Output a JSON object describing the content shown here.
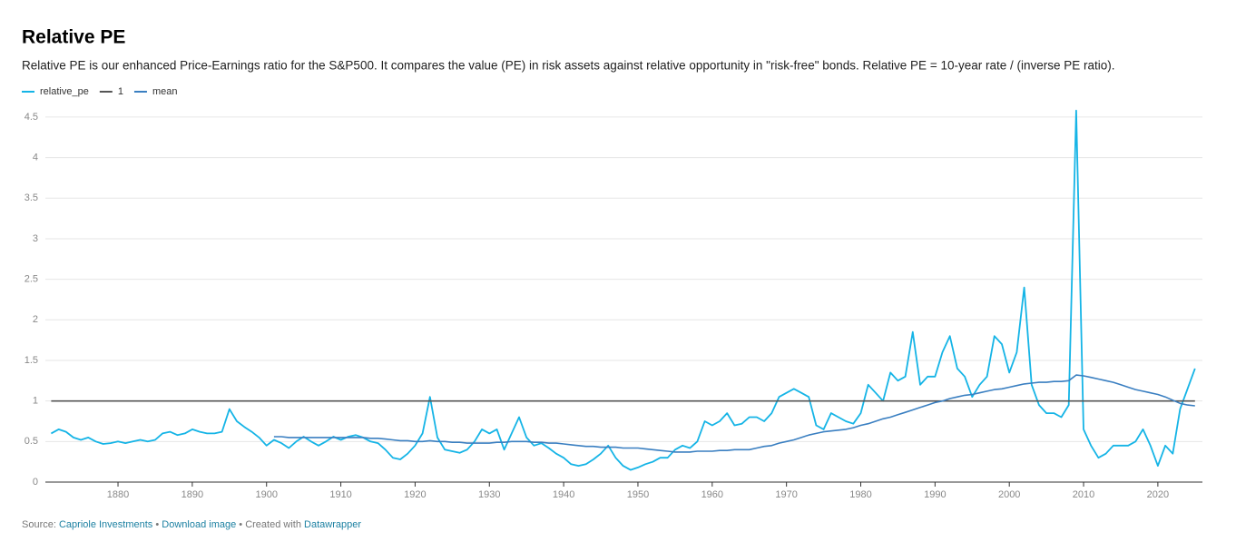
{
  "chart_data": {
    "type": "line",
    "title": "Relative PE",
    "subtitle": "Relative PE is our enhanced Price-Earnings ratio for the S&P500. It compares the value (PE) in risk assets against relative opportunity in \"risk-free\" bonds. Relative PE = 10-year rate / (inverse PE ratio).",
    "footer": {
      "source_label": "Source:",
      "source": "Capriole Investments",
      "download": "Download image",
      "created": "Created with",
      "tool": "Datawrapper"
    },
    "x": [
      1871,
      1872,
      1873,
      1874,
      1875,
      1876,
      1877,
      1878,
      1879,
      1880,
      1881,
      1882,
      1883,
      1884,
      1885,
      1886,
      1887,
      1888,
      1889,
      1890,
      1891,
      1892,
      1893,
      1894,
      1895,
      1896,
      1897,
      1898,
      1899,
      1900,
      1901,
      1902,
      1903,
      1904,
      1905,
      1906,
      1907,
      1908,
      1909,
      1910,
      1911,
      1912,
      1913,
      1914,
      1915,
      1916,
      1917,
      1918,
      1919,
      1920,
      1921,
      1922,
      1923,
      1924,
      1925,
      1926,
      1927,
      1928,
      1929,
      1930,
      1931,
      1932,
      1933,
      1934,
      1935,
      1936,
      1937,
      1938,
      1939,
      1940,
      1941,
      1942,
      1943,
      1944,
      1945,
      1946,
      1947,
      1948,
      1949,
      1950,
      1951,
      1952,
      1953,
      1954,
      1955,
      1956,
      1957,
      1958,
      1959,
      1960,
      1961,
      1962,
      1963,
      1964,
      1965,
      1966,
      1967,
      1968,
      1969,
      1970,
      1971,
      1972,
      1973,
      1974,
      1975,
      1976,
      1977,
      1978,
      1979,
      1980,
      1981,
      1982,
      1983,
      1984,
      1985,
      1986,
      1987,
      1988,
      1989,
      1990,
      1991,
      1992,
      1993,
      1994,
      1995,
      1996,
      1997,
      1998,
      1999,
      2000,
      2001,
      2002,
      2003,
      2004,
      2005,
      2006,
      2007,
      2008,
      2009,
      2010,
      2011,
      2012,
      2013,
      2014,
      2015,
      2016,
      2017,
      2018,
      2019,
      2020,
      2021,
      2022,
      2023,
      2024,
      2025
    ],
    "series": [
      {
        "name": "relative_pe",
        "color": "#15b4e6",
        "values": [
          0.6,
          0.65,
          0.62,
          0.55,
          0.52,
          0.55,
          0.5,
          0.47,
          0.48,
          0.5,
          0.48,
          0.5,
          0.52,
          0.5,
          0.52,
          0.6,
          0.62,
          0.58,
          0.6,
          0.65,
          0.62,
          0.6,
          0.6,
          0.62,
          0.9,
          0.75,
          0.68,
          0.62,
          0.55,
          0.45,
          0.52,
          0.48,
          0.42,
          0.5,
          0.56,
          0.5,
          0.45,
          0.5,
          0.56,
          0.52,
          0.56,
          0.58,
          0.55,
          0.5,
          0.48,
          0.4,
          0.3,
          0.28,
          0.35,
          0.45,
          0.6,
          1.05,
          0.55,
          0.4,
          0.38,
          0.36,
          0.4,
          0.5,
          0.65,
          0.6,
          0.65,
          0.4,
          0.6,
          0.8,
          0.55,
          0.45,
          0.48,
          0.42,
          0.35,
          0.3,
          0.22,
          0.2,
          0.22,
          0.28,
          0.35,
          0.45,
          0.3,
          0.2,
          0.15,
          0.18,
          0.22,
          0.25,
          0.3,
          0.3,
          0.4,
          0.45,
          0.42,
          0.5,
          0.75,
          0.7,
          0.75,
          0.85,
          0.7,
          0.72,
          0.8,
          0.8,
          0.75,
          0.85,
          1.05,
          1.1,
          1.15,
          1.1,
          1.05,
          0.7,
          0.65,
          0.85,
          0.8,
          0.75,
          0.72,
          0.85,
          1.2,
          1.1,
          1.0,
          1.35,
          1.25,
          1.3,
          1.85,
          1.2,
          1.3,
          1.3,
          1.6,
          1.8,
          1.4,
          1.3,
          1.05,
          1.2,
          1.3,
          1.8,
          1.7,
          1.35,
          1.6,
          2.4,
          1.2,
          0.95,
          0.85,
          0.85,
          0.8,
          0.95,
          4.58,
          0.65,
          0.45,
          0.3,
          0.35,
          0.45,
          0.45,
          0.45,
          0.5,
          0.65,
          0.45,
          0.2,
          0.45,
          0.35,
          0.9,
          1.15,
          1.4
        ]
      },
      {
        "name": "1",
        "color": "#555555",
        "values": [
          1,
          1,
          1,
          1,
          1,
          1,
          1,
          1,
          1,
          1,
          1,
          1,
          1,
          1,
          1,
          1,
          1,
          1,
          1,
          1,
          1,
          1,
          1,
          1,
          1,
          1,
          1,
          1,
          1,
          1,
          1,
          1,
          1,
          1,
          1,
          1,
          1,
          1,
          1,
          1,
          1,
          1,
          1,
          1,
          1,
          1,
          1,
          1,
          1,
          1,
          1,
          1,
          1,
          1,
          1,
          1,
          1,
          1,
          1,
          1,
          1,
          1,
          1,
          1,
          1,
          1,
          1,
          1,
          1,
          1,
          1,
          1,
          1,
          1,
          1,
          1,
          1,
          1,
          1,
          1,
          1,
          1,
          1,
          1,
          1,
          1,
          1,
          1,
          1,
          1,
          1,
          1,
          1,
          1,
          1,
          1,
          1,
          1,
          1,
          1,
          1,
          1,
          1,
          1,
          1,
          1,
          1,
          1,
          1,
          1,
          1,
          1,
          1,
          1,
          1,
          1,
          1,
          1,
          1,
          1,
          1,
          1,
          1,
          1,
          1,
          1,
          1,
          1,
          1,
          1,
          1,
          1,
          1,
          1,
          1,
          1,
          1,
          1,
          1,
          1,
          1,
          1,
          1,
          1,
          1,
          1,
          1,
          1,
          1,
          1,
          1,
          1,
          1,
          1,
          1
        ]
      },
      {
        "name": "mean",
        "color": "#3a7fc1",
        "values": [
          null,
          null,
          null,
          null,
          null,
          null,
          null,
          null,
          null,
          null,
          null,
          null,
          null,
          null,
          null,
          null,
          null,
          null,
          null,
          null,
          null,
          null,
          null,
          null,
          null,
          null,
          null,
          null,
          null,
          null,
          0.56,
          0.56,
          0.55,
          0.55,
          0.55,
          0.55,
          0.55,
          0.55,
          0.55,
          0.55,
          0.55,
          0.55,
          0.55,
          0.54,
          0.54,
          0.53,
          0.52,
          0.51,
          0.51,
          0.5,
          0.5,
          0.51,
          0.5,
          0.5,
          0.49,
          0.49,
          0.48,
          0.48,
          0.48,
          0.48,
          0.49,
          0.49,
          0.5,
          0.5,
          0.5,
          0.49,
          0.49,
          0.48,
          0.48,
          0.47,
          0.46,
          0.45,
          0.44,
          0.44,
          0.43,
          0.43,
          0.43,
          0.42,
          0.42,
          0.42,
          0.41,
          0.4,
          0.39,
          0.38,
          0.37,
          0.37,
          0.37,
          0.38,
          0.38,
          0.38,
          0.39,
          0.39,
          0.4,
          0.4,
          0.4,
          0.42,
          0.44,
          0.45,
          0.48,
          0.5,
          0.52,
          0.55,
          0.58,
          0.6,
          0.62,
          0.63,
          0.64,
          0.65,
          0.67,
          0.7,
          0.72,
          0.75,
          0.78,
          0.8,
          0.83,
          0.86,
          0.89,
          0.92,
          0.95,
          0.98,
          1.0,
          1.03,
          1.05,
          1.07,
          1.08,
          1.1,
          1.12,
          1.14,
          1.15,
          1.17,
          1.19,
          1.21,
          1.22,
          1.23,
          1.23,
          1.24,
          1.24,
          1.25,
          1.32,
          1.31,
          1.29,
          1.27,
          1.25,
          1.23,
          1.2,
          1.17,
          1.14,
          1.12,
          1.1,
          1.08,
          1.05,
          1.01,
          0.97,
          0.95,
          0.94
        ]
      }
    ],
    "xlim": [
      1869,
      2026
    ],
    "xticks": [
      1880,
      1890,
      1900,
      1910,
      1920,
      1930,
      1940,
      1950,
      1960,
      1970,
      1980,
      1990,
      2000,
      2010,
      2020
    ],
    "ylim": [
      0,
      4.6
    ],
    "yticks": [
      0,
      0.5,
      1,
      1.5,
      2,
      2.5,
      3,
      3.5,
      4,
      4.5
    ],
    "grid": true,
    "legend": "top-left"
  }
}
